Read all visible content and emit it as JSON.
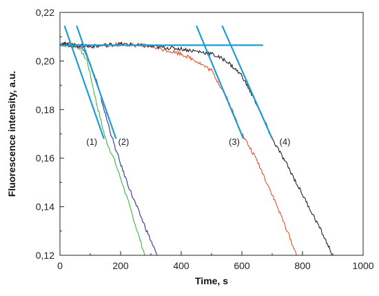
{
  "chart_data": {
    "type": "line",
    "xlabel": "Time, s",
    "ylabel": "Fluorescence intensity, a.u.",
    "xlim": [
      0,
      1000
    ],
    "ylim": [
      0.12,
      0.22
    ],
    "x_ticks": [
      0,
      200,
      400,
      600,
      800,
      1000
    ],
    "x_tick_labels": [
      "0",
      "200",
      "400",
      "600",
      "800",
      "1000"
    ],
    "y_ticks": [
      0.12,
      0.14,
      0.16,
      0.18,
      0.2,
      0.22
    ],
    "y_tick_labels": [
      "0,12",
      "0,14",
      "0,16",
      "0,18",
      "0,20",
      "0,22"
    ],
    "grid": false,
    "series": [
      {
        "label": "(1)",
        "color": "#3cb44b",
        "x": [
          0,
          30,
          60,
          90,
          120,
          150,
          180,
          210,
          240,
          270,
          280
        ],
        "y": [
          0.207,
          0.206,
          0.206,
          0.2,
          0.183,
          0.168,
          0.159,
          0.148,
          0.136,
          0.124,
          0.12
        ]
      },
      {
        "label": "(2)",
        "color": "#2e3192",
        "x": [
          0,
          40,
          80,
          120,
          150,
          180,
          210,
          240,
          270,
          300,
          320
        ],
        "y": [
          0.207,
          0.207,
          0.205,
          0.192,
          0.178,
          0.165,
          0.154,
          0.144,
          0.135,
          0.126,
          0.12
        ]
      },
      {
        "label": "(3)",
        "color": "#e8502a",
        "x": [
          0,
          100,
          200,
          300,
          400,
          450,
          500,
          550,
          600,
          650,
          700,
          750,
          780
        ],
        "y": [
          0.207,
          0.206,
          0.207,
          0.206,
          0.203,
          0.2,
          0.196,
          0.185,
          0.17,
          0.159,
          0.145,
          0.13,
          0.12
        ]
      },
      {
        "label": "(4)",
        "color": "#231f20",
        "x": [
          0,
          100,
          200,
          300,
          400,
          500,
          550,
          600,
          650,
          700,
          750,
          800,
          850,
          900
        ],
        "y": [
          0.207,
          0.206,
          0.207,
          0.206,
          0.205,
          0.203,
          0.2,
          0.194,
          0.182,
          0.168,
          0.157,
          0.145,
          0.133,
          0.12
        ]
      }
    ],
    "tangent_lines": {
      "color": "#1e9bd7",
      "baseline": {
        "x": [
          0,
          670
        ],
        "y": [
          0.2065,
          0.2065
        ]
      },
      "lines": [
        {
          "x": [
            15,
            145
          ],
          "y": [
            0.2145,
            0.168
          ]
        },
        {
          "x": [
            55,
            185
          ],
          "y": [
            0.2145,
            0.168
          ]
        },
        {
          "x": [
            450,
            605
          ],
          "y": [
            0.2145,
            0.168
          ]
        },
        {
          "x": [
            535,
            700
          ],
          "y": [
            0.2145,
            0.168
          ]
        }
      ]
    },
    "annotations": [
      {
        "text": "(1)",
        "x": 105,
        "y": 0.1655
      },
      {
        "text": "(2)",
        "x": 210,
        "y": 0.1655
      },
      {
        "text": "(3)",
        "x": 575,
        "y": 0.1655
      },
      {
        "text": "(4)",
        "x": 742,
        "y": 0.1655
      }
    ]
  }
}
